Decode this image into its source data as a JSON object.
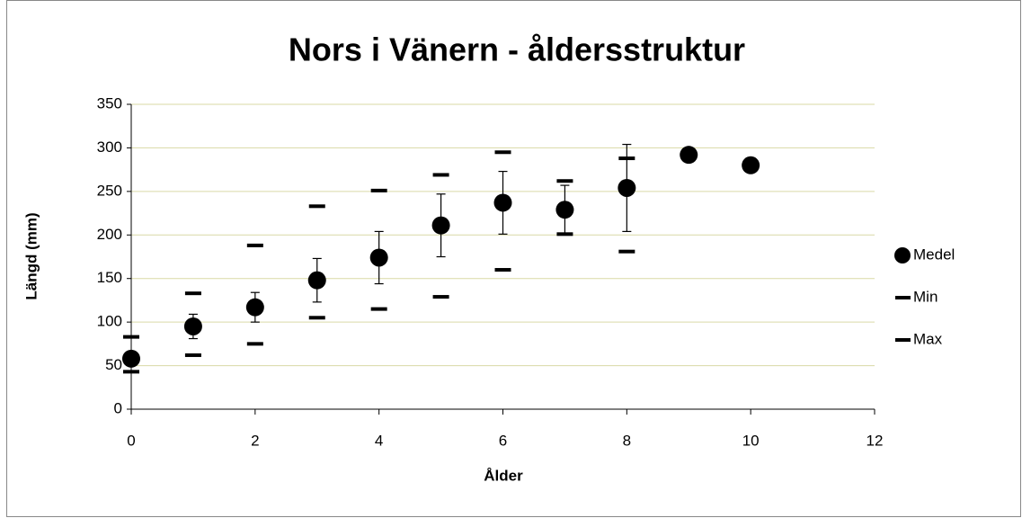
{
  "chart_data": {
    "type": "scatter",
    "title": "Nors i Vänern - åldersstruktur",
    "x_label": "Ålder",
    "y_label": "Längd (mm)",
    "x": [
      0,
      1,
      2,
      3,
      4,
      5,
      6,
      7,
      8,
      9,
      10
    ],
    "series": [
      {
        "name": "Medel",
        "color": "#000000",
        "marker": "circle",
        "values": [
          58,
          95,
          117,
          148,
          174,
          211,
          237,
          229,
          254,
          292,
          280
        ],
        "errors": [
          null,
          14,
          17,
          25,
          30,
          36,
          36,
          28,
          50,
          null,
          null
        ]
      },
      {
        "name": "Min",
        "color": "#000000",
        "marker": "dash",
        "values": [
          43,
          62,
          75,
          105,
          115,
          129,
          160,
          201,
          181,
          null,
          null
        ]
      },
      {
        "name": "Max",
        "color": "#000000",
        "marker": "dash",
        "values": [
          83,
          133,
          188,
          233,
          251,
          269,
          295,
          262,
          288,
          null,
          null
        ]
      }
    ],
    "xlim": [
      0,
      12
    ],
    "xticks": [
      0,
      2,
      4,
      6,
      8,
      10,
      12
    ],
    "ylim": [
      0,
      350
    ],
    "yticks": [
      0,
      50,
      100,
      150,
      200,
      250,
      300,
      350
    ],
    "grid": true,
    "legend": "right"
  }
}
